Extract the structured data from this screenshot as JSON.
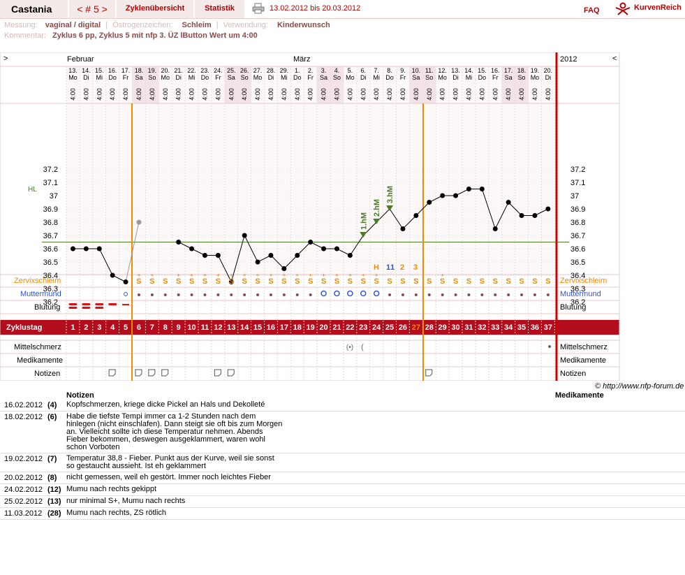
{
  "topbar": {
    "username": "Castania",
    "cycle_nav": "< # 5 >",
    "tab_overview": "Zyklenübersicht",
    "tab_stats": "Statistik",
    "print_icon": "printer-icon",
    "date_range": "13.02.2012 bis 20.03.2012",
    "faq": "FAQ",
    "logo_text": "KurvenReich",
    "logo_icon": "kurvenreich-logo-icon"
  },
  "meta": {
    "messung_label": "Messung:",
    "messung_value": "vaginal / digital",
    "oestrogen_label": "Östrogenzeichen:",
    "oestrogen_value": "Schleim",
    "verwendung_label": "Verwendung:",
    "verwendung_value": "Kinderwunsch",
    "kommentar_label": "Kommentar:",
    "kommentar_value": "Zyklus 6 pp, Zyklus 5 mit nfp 3. ÜZ lButton Wert um 4:00"
  },
  "chart": {
    "nav_prev": ">",
    "nav_next": "<",
    "month_feb": "Februar",
    "month_mar": "März",
    "year": "2012",
    "hl_label": "HL",
    "row_cervix": "Zervixschleim",
    "row_mumu": "Muttermund",
    "row_blutung": "Blutung",
    "row_zyklustag": "Zyklustag",
    "row_mittel": "Mittelschmerz",
    "row_medi": "Medikamente",
    "row_notizen": "Notizen",
    "time": "4:00",
    "hm_labels": [
      "1.hM",
      "2.hM",
      "3.hM"
    ],
    "h_markers": [
      "H",
      "1",
      "1",
      "2",
      "3"
    ],
    "colors": {
      "accent": "#b30000",
      "orange": "#f08a00",
      "cervix": "#f08a00",
      "mumu": "#3355cc",
      "green": "#4a7a2a",
      "weekend": "#f3e3e6"
    }
  },
  "chart_data": {
    "type": "line",
    "title": "",
    "ylabel": "",
    "ylim": [
      36.1,
      37.3
    ],
    "yticks": [
      "37.2",
      "37.1",
      "37",
      "36.9",
      "36.8",
      "36.7",
      "36.6",
      "36.5",
      "36.4",
      "36.3",
      "36.2"
    ],
    "days": [
      {
        "d": "13.",
        "w": "Mo"
      },
      {
        "d": "14.",
        "w": "Di"
      },
      {
        "d": "15.",
        "w": "Mi"
      },
      {
        "d": "16.",
        "w": "Do"
      },
      {
        "d": "17.",
        "w": "Fr"
      },
      {
        "d": "18.",
        "w": "Sa"
      },
      {
        "d": "19.",
        "w": "So"
      },
      {
        "d": "20.",
        "w": "Mo"
      },
      {
        "d": "21.",
        "w": "Di"
      },
      {
        "d": "22.",
        "w": "Mi"
      },
      {
        "d": "23.",
        "w": "Do"
      },
      {
        "d": "24.",
        "w": "Fr"
      },
      {
        "d": "25.",
        "w": "Sa"
      },
      {
        "d": "26.",
        "w": "So"
      },
      {
        "d": "27.",
        "w": "Mo"
      },
      {
        "d": "28.",
        "w": "Di"
      },
      {
        "d": "29.",
        "w": "Mi"
      },
      {
        "d": "1.",
        "w": "Do"
      },
      {
        "d": "2.",
        "w": "Fr"
      },
      {
        "d": "3.",
        "w": "Sa"
      },
      {
        "d": "4.",
        "w": "So"
      },
      {
        "d": "5.",
        "w": "Mo"
      },
      {
        "d": "6.",
        "w": "Di"
      },
      {
        "d": "7.",
        "w": "Mi"
      },
      {
        "d": "8.",
        "w": "Do"
      },
      {
        "d": "9.",
        "w": "Fr"
      },
      {
        "d": "10.",
        "w": "Sa"
      },
      {
        "d": "11.",
        "w": "So"
      },
      {
        "d": "12.",
        "w": "Mo"
      },
      {
        "d": "13.",
        "w": "Di"
      },
      {
        "d": "14.",
        "w": "Mi"
      },
      {
        "d": "15.",
        "w": "Do"
      },
      {
        "d": "16.",
        "w": "Fr"
      },
      {
        "d": "17.",
        "w": "Sa"
      },
      {
        "d": "18.",
        "w": "So"
      },
      {
        "d": "19.",
        "w": "Mo"
      },
      {
        "d": "20.",
        "w": "Di"
      }
    ],
    "weekend_days": [
      6,
      7,
      13,
      14,
      20,
      21,
      27,
      28,
      34,
      35
    ],
    "cycle_days": [
      "1",
      "2",
      "3",
      "4",
      "5",
      "6",
      "7",
      "8",
      "9",
      "10",
      "11",
      "12",
      "13",
      "14",
      "15",
      "16",
      "17",
      "18",
      "19",
      "20",
      "21",
      "22",
      "23",
      "24",
      "25",
      "26",
      "27",
      "28",
      "29",
      "30",
      "31",
      "32",
      "33",
      "34",
      "35",
      "36",
      "37"
    ],
    "temps": [
      36.6,
      36.6,
      36.6,
      36.4,
      36.35,
      null,
      null,
      null,
      36.65,
      36.6,
      36.55,
      36.55,
      36.35,
      36.7,
      36.5,
      36.55,
      36.45,
      36.55,
      36.65,
      36.6,
      36.6,
      36.55,
      36.7,
      36.8,
      36.9,
      36.75,
      36.85,
      36.95,
      37.0,
      37.0,
      37.05,
      37.05,
      36.75,
      36.95,
      36.85,
      36.85,
      36.9
    ],
    "excluded_temp": {
      "day": 6,
      "value": 36.8
    },
    "high_marked_days": [
      23,
      24,
      25
    ],
    "hl_value": 36.65,
    "cervix": [
      "",
      "",
      "",
      "",
      "",
      "S+",
      "S+",
      "S",
      "S+",
      "S+",
      "S+",
      "S+",
      "S+",
      "S+",
      "S+",
      "S+",
      "S+",
      "S+",
      "S+",
      "S+",
      "S+",
      "S+",
      "S+",
      "S+",
      "S",
      "S",
      "S",
      "S",
      "S+",
      "S",
      "S",
      "S",
      "S",
      "S",
      "S",
      "S",
      "S"
    ],
    "bleeding_days": [
      1,
      2,
      3,
      4,
      5
    ],
    "ovulation_line_day": 27,
    "cycle_start_line_day": 5.5,
    "note_days": [
      4,
      6,
      7,
      8,
      12,
      13,
      28
    ]
  },
  "notes": {
    "header_notes": "Notizen",
    "header_medi": "Medikamente",
    "copyright": "© http://www.nfp-forum.de",
    "rows": [
      {
        "date": "16.02.2012",
        "cd": "(4)",
        "text": "Kopfschmerzen, kriege dicke Pickel an Hals und Dekolleté"
      },
      {
        "date": "18.02.2012",
        "cd": "(6)",
        "text": "Habe die tiefste Tempi immer ca 1-2 Stunden nach dem hinlegen (nicht einschlafen). Dann steigt sie oft bis zum Morgen an. Vielleicht sollte ich diese Temperatur nehmen. Abends Fieber bekommen, deswegen ausgeklammert, waren wohl schon Vorboten"
      },
      {
        "date": "19.02.2012",
        "cd": "(7)",
        "text": "Temperatur 38,8 - Fieber. Punkt aus der Kurve, weil sie sonst so gestaucht aussieht. Ist eh geklammert"
      },
      {
        "date": "20.02.2012",
        "cd": "(8)",
        "text": "nicht gemessen, weil eh gestört. Immer noch leichtes Fieber"
      },
      {
        "date": "24.02.2012",
        "cd": "(12)",
        "text": "Mumu nach rechts gekippt"
      },
      {
        "date": "25.02.2012",
        "cd": "(13)",
        "text": "nur minimal S+, Mumu nach rechts"
      },
      {
        "date": "11.03.2012",
        "cd": "(28)",
        "text": "Mumu nach rechts, ZS rötlich"
      }
    ]
  }
}
